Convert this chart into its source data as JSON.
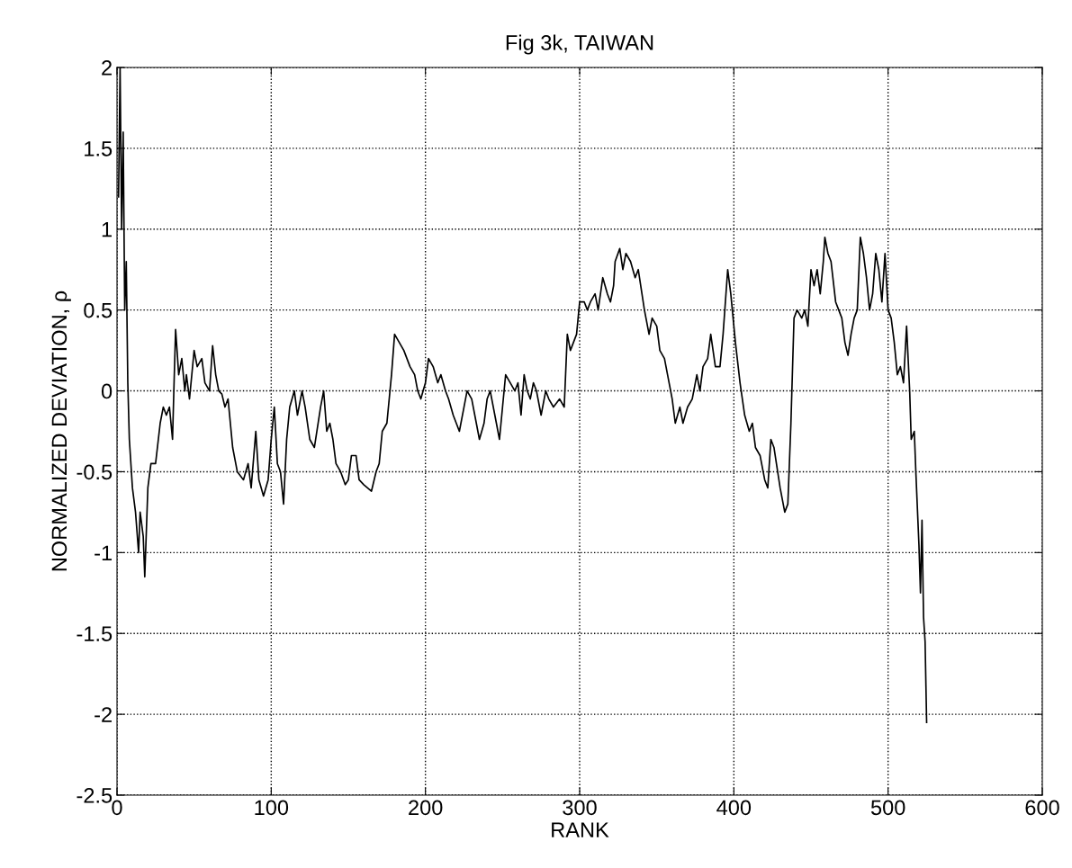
{
  "chart_data": {
    "type": "line",
    "title": "Fig 3k, TAIWAN",
    "xlabel": "RANK",
    "ylabel": "NORMALIZED DEVIATION, ρ",
    "xlim": [
      0,
      600
    ],
    "xticks": [
      0,
      100,
      200,
      300,
      400,
      500,
      600
    ],
    "ylim": [
      -2.5,
      2
    ],
    "yticks": [
      -2.5,
      -2,
      -1.5,
      -1,
      -0.5,
      0,
      0.5,
      1,
      1.5,
      2
    ],
    "grid": true,
    "line_style": "solid",
    "series": [
      {
        "color": "#000000",
        "x": [
          1,
          2,
          3,
          4,
          5,
          6,
          7,
          8,
          10,
          12,
          14,
          15,
          17,
          18,
          20,
          22,
          25,
          28,
          30,
          32,
          34,
          36,
          37,
          38,
          40,
          42,
          44,
          45,
          47,
          50,
          52,
          55,
          57,
          60,
          62,
          64,
          66,
          68,
          70,
          72,
          75,
          78,
          82,
          85,
          87,
          90,
          92,
          95,
          98,
          100,
          102,
          104,
          106,
          108,
          110,
          112,
          115,
          117,
          120,
          122,
          125,
          128,
          132,
          134,
          136,
          138,
          140,
          142,
          145,
          148,
          150,
          152,
          155,
          157,
          160,
          165,
          168,
          170,
          172,
          175,
          178,
          180,
          183,
          186,
          190,
          193,
          195,
          197,
          200,
          202,
          205,
          208,
          210,
          213,
          215,
          218,
          220,
          222,
          225,
          227,
          230,
          233,
          235,
          238,
          240,
          242,
          245,
          248,
          250,
          252,
          255,
          258,
          260,
          262,
          264,
          266,
          268,
          270,
          272,
          275,
          278,
          280,
          283,
          287,
          290,
          292,
          294,
          296,
          298,
          300,
          303,
          305,
          307,
          310,
          312,
          315,
          318,
          320,
          322,
          323,
          326,
          328,
          330,
          333,
          336,
          338,
          342,
          345,
          347,
          350,
          352,
          355,
          357,
          360,
          362,
          365,
          367,
          370,
          373,
          376,
          378,
          380,
          383,
          385,
          388,
          391,
          393,
          396,
          398,
          401,
          404,
          407,
          410,
          412,
          414,
          417,
          420,
          422,
          424,
          426,
          430,
          433,
          435,
          437,
          439,
          441,
          444,
          446,
          448,
          450,
          452,
          454,
          456,
          458,
          459,
          461,
          463,
          466,
          468,
          470,
          472,
          474,
          476,
          478,
          480,
          482,
          484,
          486,
          488,
          490,
          492,
          494,
          496,
          498,
          500,
          502,
          504,
          506,
          508,
          510,
          512,
          514,
          515,
          517,
          518,
          520,
          521,
          522,
          523,
          524,
          525
        ],
        "values": [
          1.2,
          2.0,
          1.0,
          1.6,
          0.5,
          0.8,
          0.05,
          -0.3,
          -0.6,
          -0.75,
          -1.0,
          -0.75,
          -0.9,
          -1.15,
          -0.6,
          -0.45,
          -0.45,
          -0.2,
          -0.1,
          -0.15,
          -0.1,
          -0.3,
          0.05,
          0.38,
          0.1,
          0.2,
          0.0,
          0.1,
          -0.05,
          0.25,
          0.15,
          0.2,
          0.05,
          0.0,
          0.28,
          0.1,
          0.0,
          -0.02,
          -0.1,
          -0.05,
          -0.35,
          -0.5,
          -0.55,
          -0.45,
          -0.6,
          -0.25,
          -0.55,
          -0.65,
          -0.55,
          -0.3,
          -0.1,
          -0.45,
          -0.5,
          -0.7,
          -0.3,
          -0.1,
          0.0,
          -0.15,
          0.0,
          -0.1,
          -0.3,
          -0.35,
          -0.1,
          0.0,
          -0.25,
          -0.2,
          -0.3,
          -0.45,
          -0.5,
          -0.58,
          -0.55,
          -0.4,
          -0.4,
          -0.55,
          -0.58,
          -0.62,
          -0.5,
          -0.45,
          -0.25,
          -0.2,
          0.1,
          0.35,
          0.3,
          0.25,
          0.15,
          0.1,
          0.0,
          -0.05,
          0.05,
          0.2,
          0.15,
          0.05,
          0.1,
          0.0,
          -0.05,
          -0.15,
          -0.2,
          -0.25,
          -0.1,
          0.0,
          -0.05,
          -0.2,
          -0.3,
          -0.2,
          -0.05,
          0.0,
          -0.15,
          -0.3,
          -0.1,
          0.1,
          0.05,
          0.0,
          0.05,
          -0.15,
          0.1,
          0.0,
          -0.05,
          0.05,
          0.0,
          -0.15,
          0.0,
          -0.05,
          -0.1,
          -0.05,
          -0.1,
          0.35,
          0.25,
          0.3,
          0.35,
          0.55,
          0.55,
          0.5,
          0.55,
          0.6,
          0.5,
          0.7,
          0.6,
          0.55,
          0.65,
          0.8,
          0.88,
          0.75,
          0.85,
          0.8,
          0.7,
          0.75,
          0.5,
          0.35,
          0.45,
          0.4,
          0.25,
          0.2,
          0.1,
          -0.05,
          -0.2,
          -0.1,
          -0.2,
          -0.1,
          -0.05,
          0.1,
          0.0,
          0.15,
          0.2,
          0.35,
          0.15,
          0.15,
          0.35,
          0.75,
          0.6,
          0.3,
          0.05,
          -0.15,
          -0.25,
          -0.2,
          -0.35,
          -0.4,
          -0.55,
          -0.6,
          -0.3,
          -0.35,
          -0.6,
          -0.75,
          -0.7,
          -0.2,
          0.45,
          0.5,
          0.45,
          0.5,
          0.4,
          0.75,
          0.65,
          0.75,
          0.6,
          0.8,
          0.95,
          0.85,
          0.8,
          0.55,
          0.5,
          0.45,
          0.3,
          0.22,
          0.35,
          0.45,
          0.5,
          0.95,
          0.85,
          0.7,
          0.5,
          0.6,
          0.85,
          0.75,
          0.55,
          0.85,
          0.5,
          0.45,
          0.3,
          0.1,
          0.15,
          0.05,
          0.4,
          0.0,
          -0.3,
          -0.25,
          -0.5,
          -0.95,
          -1.25,
          -0.8,
          -1.4,
          -1.55,
          -2.05
        ]
      }
    ]
  }
}
